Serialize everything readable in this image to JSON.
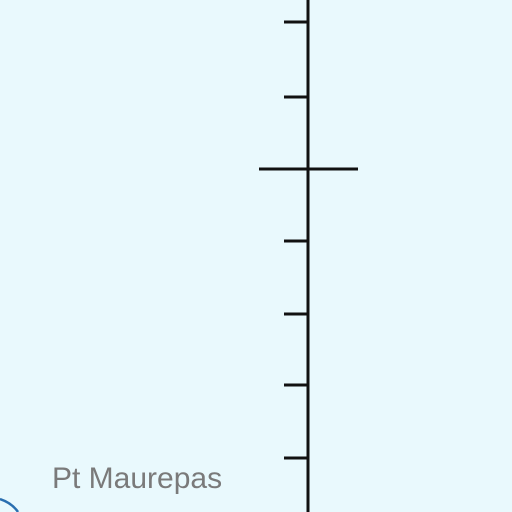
{
  "map": {
    "background_color": "#e9f9fd",
    "line_color": "#111111",
    "coast_color": "#2a6fb0",
    "label_color": "#7a7a7a"
  },
  "labels": {
    "place_name": "Pt Maurepas"
  }
}
